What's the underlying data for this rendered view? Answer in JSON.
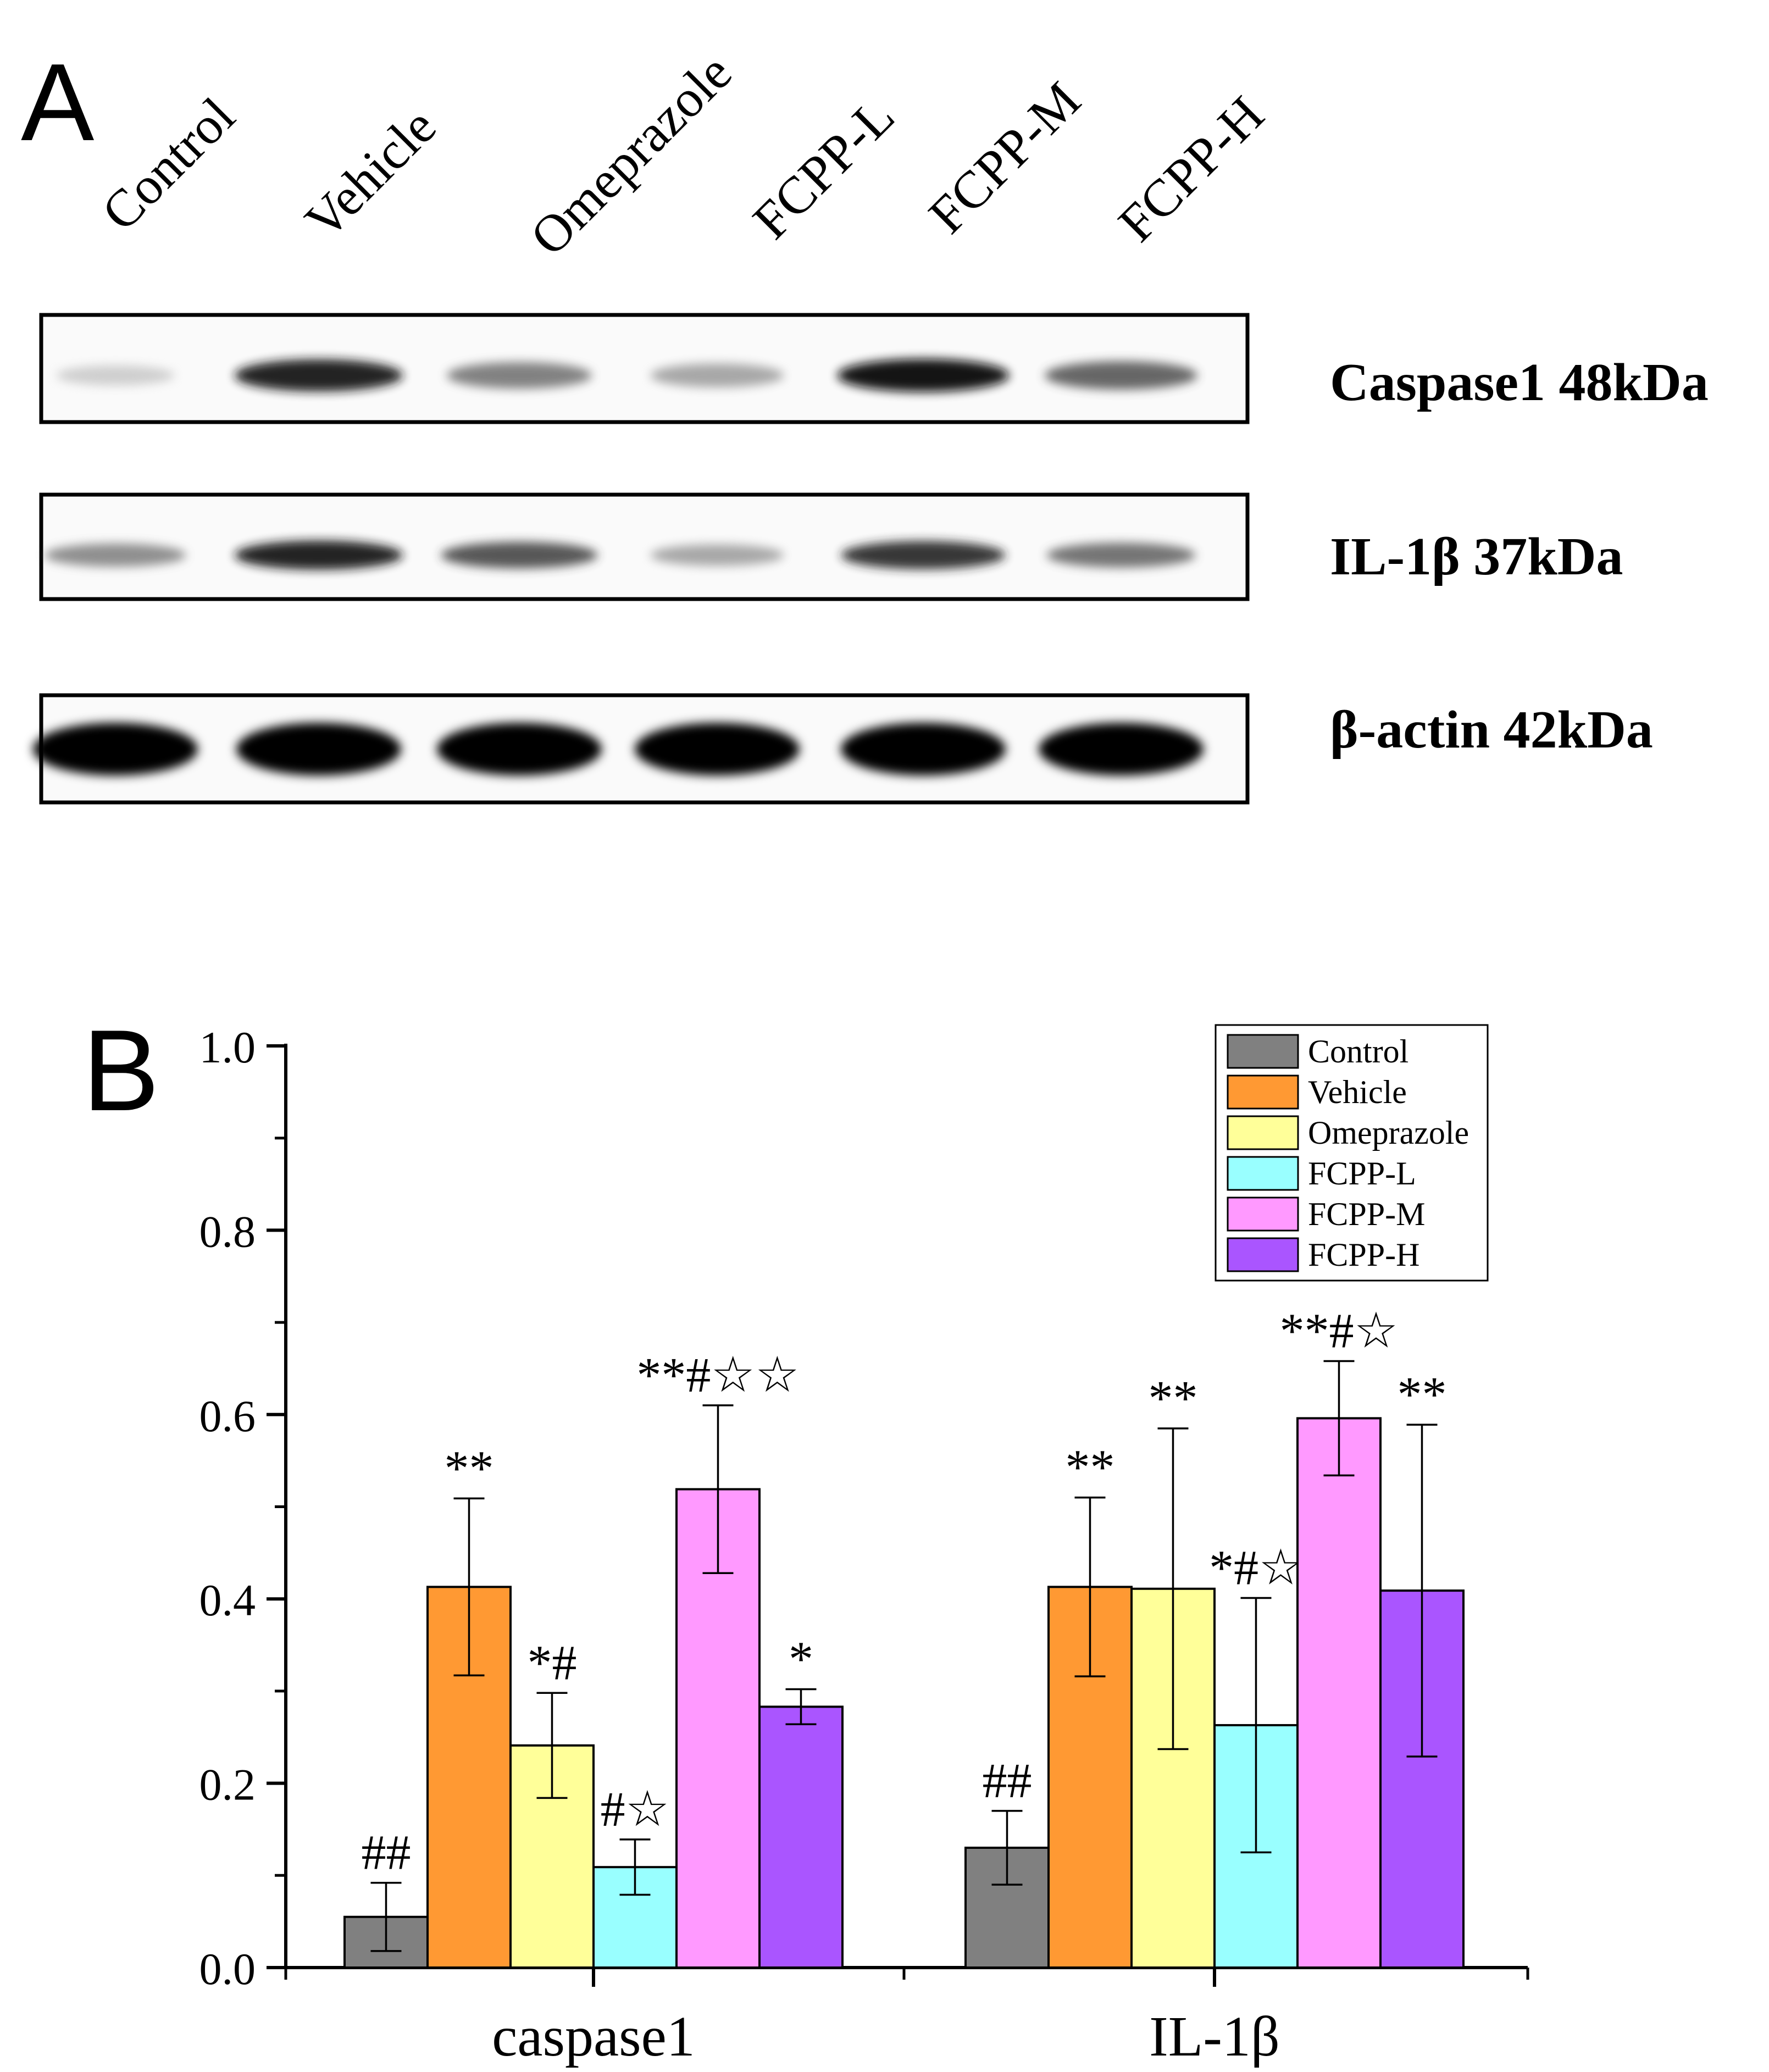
{
  "panel_a": {
    "label": "A",
    "lanes": [
      "Control",
      "Vehicle",
      "Omeprazole",
      "FCPP-L",
      "FCPP-M",
      "FCPP-H"
    ],
    "blots": [
      {
        "label": "Caspase1 48kDa",
        "band_intensity": [
          0.25,
          0.9,
          0.6,
          0.45,
          0.95,
          0.7
        ]
      },
      {
        "label": "IL-1β 37kDa",
        "band_intensity": [
          0.55,
          0.9,
          0.75,
          0.45,
          0.85,
          0.65
        ]
      },
      {
        "label": "β-actin 42kDa",
        "band_intensity": [
          1.0,
          1.0,
          1.0,
          1.0,
          1.0,
          1.0
        ]
      }
    ]
  },
  "chart_data": {
    "type": "bar",
    "panel_label": "B",
    "title": "",
    "xlabel": "",
    "ylabel": "",
    "ylim": [
      0,
      1.0
    ],
    "yticks": [
      "0.0",
      "0.2",
      "0.4",
      "0.6",
      "0.8",
      "1.0"
    ],
    "categories": [
      "caspase1",
      "IL-1β"
    ],
    "legend_position": "top-right",
    "series": [
      {
        "name": "Control",
        "color": "#808080",
        "values": [
          0.055,
          0.13
        ],
        "errors": [
          0.037,
          0.04
        ],
        "annotations": [
          "##",
          "##"
        ]
      },
      {
        "name": "Vehicle",
        "color": "#ff9933",
        "values": [
          0.413,
          0.413
        ],
        "errors": [
          0.096,
          0.097
        ],
        "annotations": [
          "**",
          "**"
        ]
      },
      {
        "name": "Omeprazole",
        "color": "#ffff99",
        "values": [
          0.241,
          0.411
        ],
        "errors": [
          0.057,
          0.174
        ],
        "annotations": [
          "*#",
          "**"
        ]
      },
      {
        "name": "FCPP-L",
        "color": "#99ffff",
        "values": [
          0.109,
          0.263
        ],
        "errors": [
          0.03,
          0.138
        ],
        "annotations": [
          "#☆",
          "*#☆"
        ]
      },
      {
        "name": "FCPP-M",
        "color": "#ff99ff",
        "values": [
          0.519,
          0.596
        ],
        "errors": [
          0.091,
          0.062
        ],
        "annotations": [
          "**#☆☆",
          "**#☆"
        ]
      },
      {
        "name": "FCPP-H",
        "color": "#aa55ff",
        "values": [
          0.283,
          0.409
        ],
        "errors": [
          0.019,
          0.18
        ],
        "annotations": [
          "*",
          "**"
        ]
      }
    ]
  }
}
